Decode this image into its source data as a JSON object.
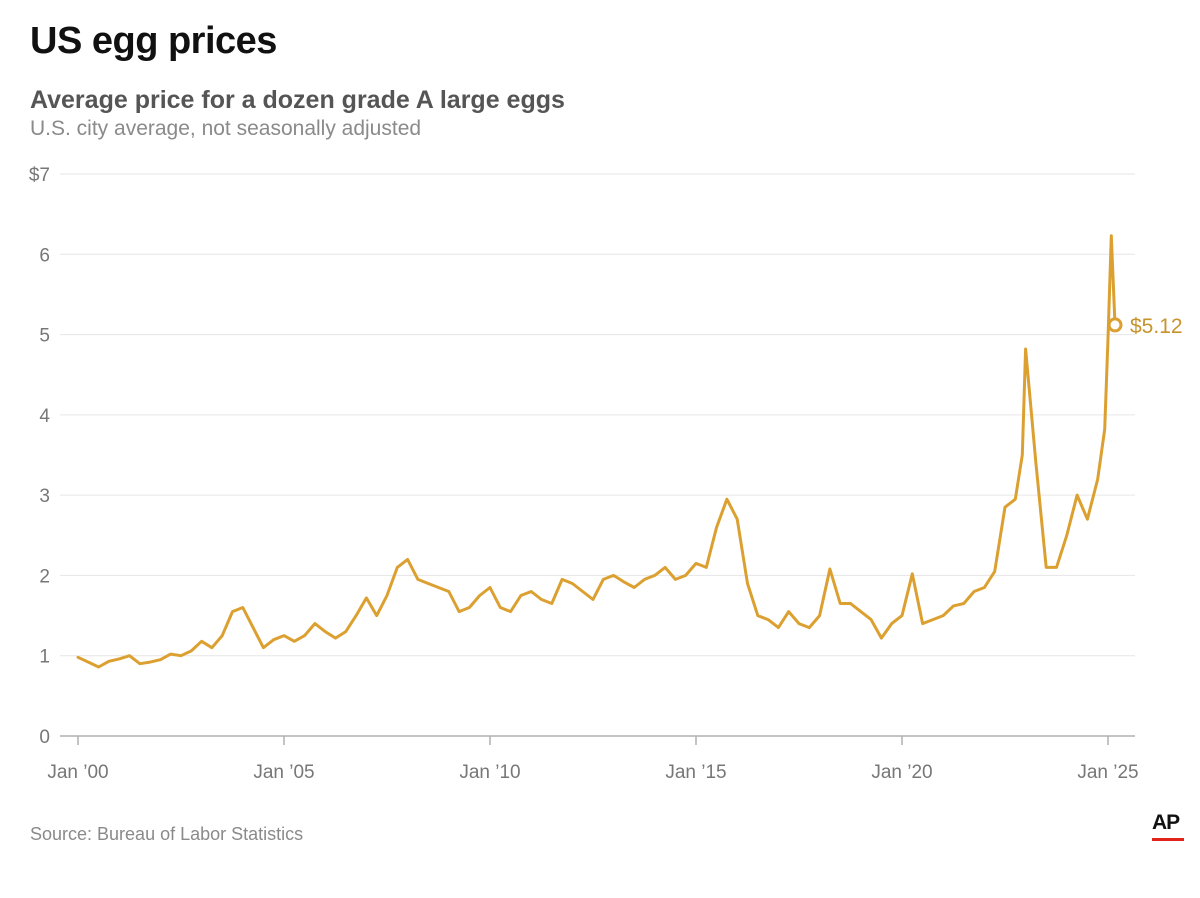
{
  "title": "US egg prices",
  "subtitle": "Average price for a dozen grade A large eggs",
  "note": "U.S. city average, not seasonally adjusted",
  "source": "Source: Bureau of Labor Statistics",
  "logo": "AP",
  "colors": {
    "line": "#dca031",
    "label": "#c8932b",
    "grid": "#e6e6e6",
    "axis": "#b0b0b0",
    "logo_bar": "#e2231a"
  },
  "chart_data": {
    "type": "line",
    "xlim": [
      2000,
      2025.25
    ],
    "ylim": [
      0,
      7
    ],
    "yticks": [
      0,
      1,
      2,
      3,
      4,
      5,
      6,
      7
    ],
    "ytick_labels": [
      "0",
      "1",
      "2",
      "3",
      "4",
      "5",
      "6",
      "$7"
    ],
    "xticks": [
      2000,
      2005,
      2010,
      2015,
      2020,
      2025
    ],
    "xtick_labels": [
      "Jan ’00",
      "Jan ’05",
      "Jan ’10",
      "Jan ’15",
      "Jan ’20",
      "Jan ’25"
    ],
    "grid": true,
    "end_label": "$5.12",
    "series": [
      {
        "x": [
          2000.0,
          2000.25,
          2000.5,
          2000.75,
          2001.0,
          2001.25,
          2001.5,
          2001.75,
          2002.0,
          2002.25,
          2002.5,
          2002.75,
          2003.0,
          2003.25,
          2003.5,
          2003.75,
          2004.0,
          2004.25,
          2004.5,
          2004.75,
          2005.0,
          2005.25,
          2005.5,
          2005.75,
          2006.0,
          2006.25,
          2006.5,
          2006.75,
          2007.0,
          2007.25,
          2007.5,
          2007.75,
          2008.0,
          2008.25,
          2008.5,
          2008.75,
          2009.0,
          2009.25,
          2009.5,
          2009.75,
          2010.0,
          2010.25,
          2010.5,
          2010.75,
          2011.0,
          2011.25,
          2011.5,
          2011.75,
          2012.0,
          2012.25,
          2012.5,
          2012.75,
          2013.0,
          2013.25,
          2013.5,
          2013.75,
          2014.0,
          2014.25,
          2014.5,
          2014.75,
          2015.0,
          2015.25,
          2015.5,
          2015.75,
          2016.0,
          2016.25,
          2016.5,
          2016.75,
          2017.0,
          2017.25,
          2017.5,
          2017.75,
          2018.0,
          2018.25,
          2018.5,
          2018.75,
          2019.0,
          2019.25,
          2019.5,
          2019.75,
          2020.0,
          2020.25,
          2020.5,
          2020.75,
          2021.0,
          2021.25,
          2021.5,
          2021.75,
          2022.0,
          2022.25,
          2022.5,
          2022.75,
          2022.92,
          2023.0,
          2023.25,
          2023.5,
          2023.75,
          2024.0,
          2024.25,
          2024.5,
          2024.75,
          2024.92,
          2025.0,
          2025.08,
          2025.17
        ],
        "y": [
          0.98,
          0.92,
          0.86,
          0.93,
          0.96,
          1.0,
          0.9,
          0.92,
          0.95,
          1.02,
          1.0,
          1.06,
          1.18,
          1.1,
          1.25,
          1.55,
          1.6,
          1.35,
          1.1,
          1.2,
          1.25,
          1.18,
          1.25,
          1.4,
          1.3,
          1.22,
          1.3,
          1.5,
          1.72,
          1.5,
          1.75,
          2.1,
          2.2,
          1.95,
          1.9,
          1.85,
          1.8,
          1.55,
          1.6,
          1.75,
          1.85,
          1.6,
          1.55,
          1.75,
          1.8,
          1.7,
          1.65,
          1.95,
          1.9,
          1.8,
          1.7,
          1.95,
          2.0,
          1.92,
          1.85,
          1.95,
          2.0,
          2.1,
          1.95,
          2.0,
          2.15,
          2.1,
          2.6,
          2.95,
          2.7,
          1.9,
          1.5,
          1.45,
          1.35,
          1.55,
          1.4,
          1.35,
          1.5,
          2.08,
          1.65,
          1.65,
          1.55,
          1.45,
          1.22,
          1.4,
          1.5,
          2.02,
          1.4,
          1.45,
          1.5,
          1.62,
          1.65,
          1.8,
          1.85,
          2.05,
          2.85,
          2.95,
          3.5,
          4.82,
          3.4,
          2.1,
          2.1,
          2.5,
          3.0,
          2.7,
          3.2,
          3.82,
          4.95,
          6.23,
          5.12
        ]
      }
    ]
  }
}
